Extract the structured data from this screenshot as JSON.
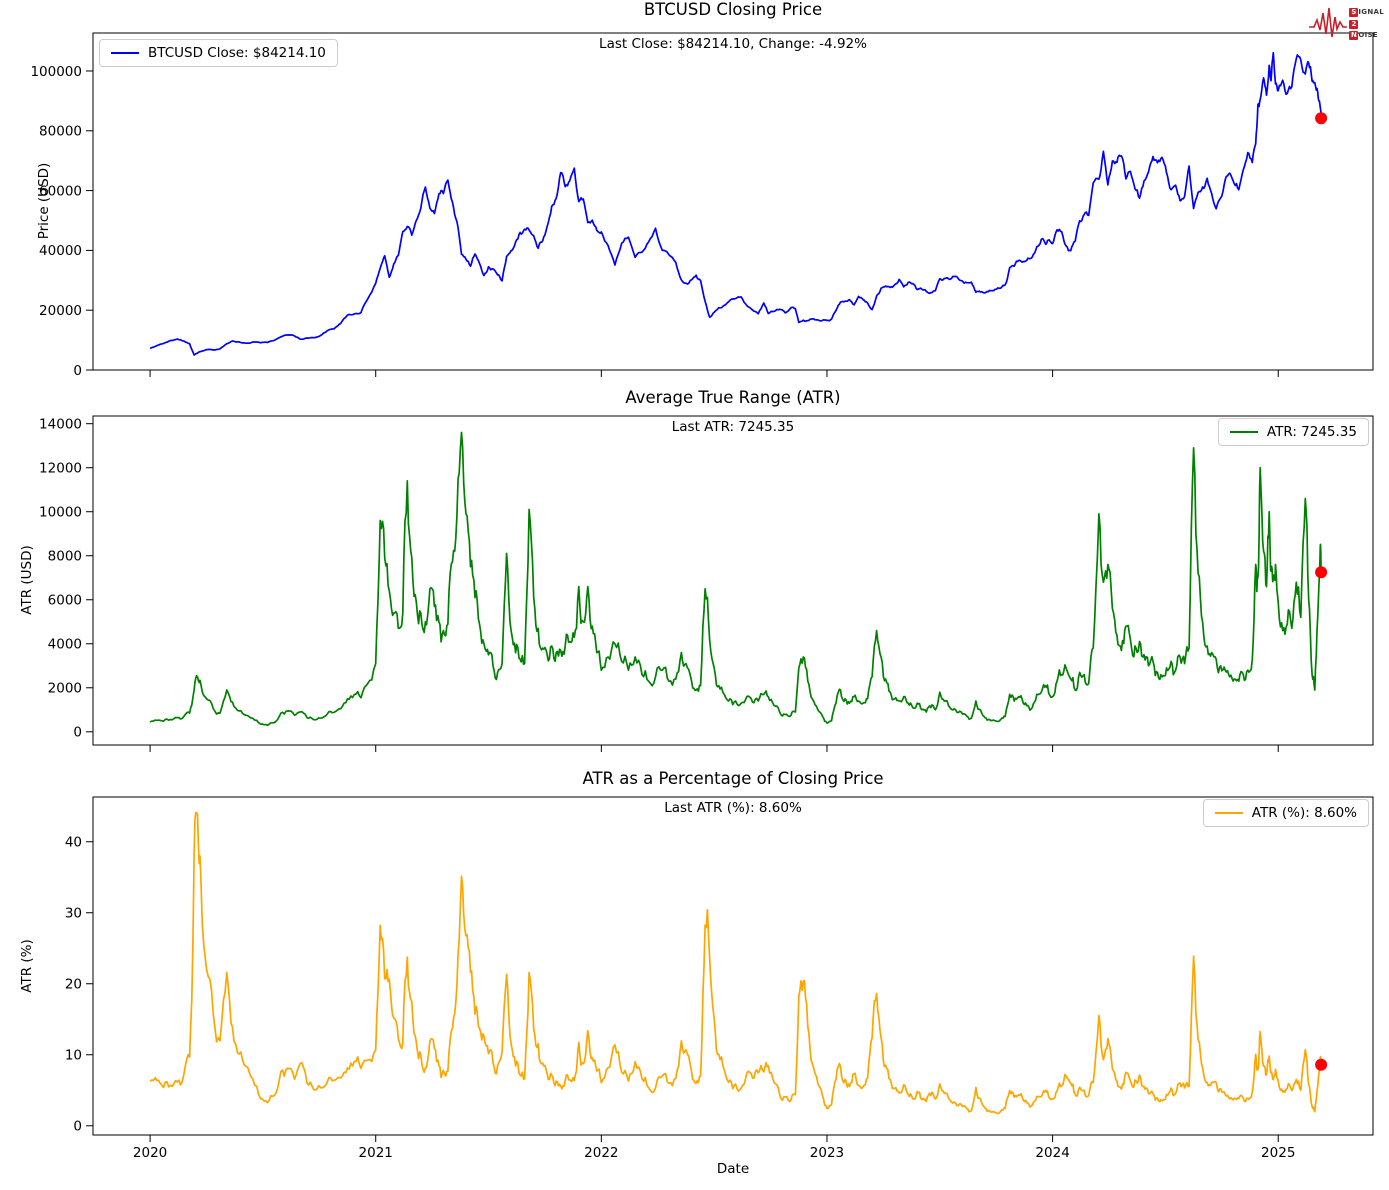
{
  "page": {
    "background": "#ffffff"
  },
  "logo": {
    "s": "S",
    "ignal": "IGNAL",
    "two": "2",
    "n": "N",
    "oise": "OISE",
    "color": "#c8202a"
  },
  "chart_data": {
    "type": "line",
    "xlabel": "Date",
    "xlim": [
      2019.747,
      2025.42
    ],
    "x_ticks_years": [
      2020,
      2021,
      2022,
      2023,
      2024,
      2025
    ],
    "x_tick_labels": [
      "2020",
      "2021",
      "2022",
      "2023",
      "2024",
      "2025"
    ],
    "endpoint_marker_color": "#ff0000",
    "series": [
      {
        "name": "BTCUSD Close",
        "color": "#0000ff",
        "component": "close"
      },
      {
        "name": "ATR",
        "color": "#008000",
        "component": "atr"
      },
      {
        "name": "ATR (%)",
        "color": "#ffa500",
        "component": "derived",
        "derived": "atr / close * 100"
      }
    ],
    "panels": [
      {
        "title": "BTCUSD Closing Price",
        "subtitle": "Last Close: $84214.10, Change: -4.92%",
        "ylabel": "Price (USD)",
        "legend_label": "BTCUSD Close: $84214.10",
        "legend_position": "upper-left",
        "series_index": 0,
        "last_value": 84214.1,
        "last_change_pct": -4.92,
        "ylim": [
          0,
          112700
        ],
        "yticks": [
          0,
          20000,
          40000,
          60000,
          80000,
          100000
        ]
      },
      {
        "title": "Average True Range (ATR)",
        "subtitle": "Last ATR: 7245.35",
        "ylabel": "ATR (USD)",
        "legend_label": "ATR: 7245.35",
        "legend_position": "upper-right",
        "series_index": 1,
        "last_value": 7245.35,
        "ylim": [
          -600,
          14350
        ],
        "yticks": [
          0,
          2000,
          4000,
          6000,
          8000,
          10000,
          12000,
          14000
        ]
      },
      {
        "title": "ATR as a Percentage of Closing Price",
        "subtitle": "Last ATR (%): 8.60%",
        "ylabel": "ATR (%)",
        "legend_label": "ATR (%): 8.60%",
        "legend_position": "upper-right",
        "series_index": 2,
        "last_value": 8.6,
        "ylim": [
          -1.3,
          46.3
        ],
        "yticks": [
          0,
          10,
          20,
          30,
          40
        ]
      }
    ],
    "points_format": [
      "year_fraction",
      "close_usd",
      "atr_usd"
    ],
    "points": [
      [
        2020.0,
        7200,
        450
      ],
      [
        2020.03,
        8150,
        520
      ],
      [
        2020.06,
        8900,
        480
      ],
      [
        2020.09,
        9850,
        560
      ],
      [
        2020.12,
        10350,
        640
      ],
      [
        2020.15,
        9650,
        700
      ],
      [
        2020.175,
        8800,
        850
      ],
      [
        2020.195,
        5000,
        1900
      ],
      [
        2020.21,
        5700,
        2500
      ],
      [
        2020.225,
        6200,
        2150
      ],
      [
        2020.25,
        6800,
        1500
      ],
      [
        2020.28,
        6700,
        1050
      ],
      [
        2020.31,
        7100,
        850
      ],
      [
        2020.34,
        8800,
        1900
      ],
      [
        2020.365,
        9700,
        1350
      ],
      [
        2020.395,
        9400,
        950
      ],
      [
        2020.425,
        8950,
        750
      ],
      [
        2020.455,
        9350,
        620
      ],
      [
        2020.49,
        9100,
        350
      ],
      [
        2020.52,
        9200,
        300
      ],
      [
        2020.55,
        9900,
        420
      ],
      [
        2020.58,
        11100,
        850
      ],
      [
        2020.61,
        11700,
        950
      ],
      [
        2020.64,
        11400,
        750
      ],
      [
        2020.665,
        10300,
        900
      ],
      [
        2020.695,
        10700,
        650
      ],
      [
        2020.725,
        10800,
        550
      ],
      [
        2020.755,
        11500,
        620
      ],
      [
        2020.785,
        13100,
        800
      ],
      [
        2020.815,
        13750,
        880
      ],
      [
        2020.845,
        15600,
        1050
      ],
      [
        2020.875,
        18400,
        1500
      ],
      [
        2020.905,
        18750,
        1700
      ],
      [
        2020.935,
        19200,
        1550
      ],
      [
        2020.965,
        23800,
        2200
      ],
      [
        2021.0,
        29000,
        3100
      ],
      [
        2021.02,
        34000,
        9600
      ],
      [
        2021.04,
        38200,
        7900
      ],
      [
        2021.06,
        31000,
        6400
      ],
      [
        2021.08,
        35500,
        5400
      ],
      [
        2021.1,
        38300,
        4700
      ],
      [
        2021.12,
        46300,
        5400
      ],
      [
        2021.14,
        48000,
        11400
      ],
      [
        2021.16,
        45100,
        7900
      ],
      [
        2021.18,
        50000,
        5900
      ],
      [
        2021.2,
        54100,
        5400
      ],
      [
        2021.22,
        61200,
        5000
      ],
      [
        2021.24,
        54100,
        6500
      ],
      [
        2021.26,
        52300,
        5700
      ],
      [
        2021.28,
        58900,
        5000
      ],
      [
        2021.3,
        59000,
        4600
      ],
      [
        2021.32,
        63500,
        4900
      ],
      [
        2021.34,
        56200,
        7700
      ],
      [
        2021.36,
        49700,
        9800
      ],
      [
        2021.38,
        38700,
        13600
      ],
      [
        2021.4,
        37000,
        9900
      ],
      [
        2021.42,
        34700,
        7500
      ],
      [
        2021.44,
        38800,
        6100
      ],
      [
        2021.46,
        35600,
        4900
      ],
      [
        2021.48,
        31600,
        4000
      ],
      [
        2021.5,
        34500,
        3500
      ],
      [
        2021.52,
        33800,
        3000
      ],
      [
        2021.54,
        31800,
        2700
      ],
      [
        2021.56,
        29800,
        3100
      ],
      [
        2021.58,
        38000,
        8100
      ],
      [
        2021.6,
        39900,
        4600
      ],
      [
        2021.62,
        42800,
        3600
      ],
      [
        2021.64,
        46000,
        3300
      ],
      [
        2021.66,
        47100,
        3100
      ],
      [
        2021.68,
        46800,
        10100
      ],
      [
        2021.7,
        44900,
        6100
      ],
      [
        2021.72,
        40700,
        4700
      ],
      [
        2021.74,
        43200,
        3800
      ],
      [
        2021.76,
        48100,
        3500
      ],
      [
        2021.78,
        54700,
        3900
      ],
      [
        2021.8,
        57400,
        3600
      ],
      [
        2021.82,
        66000,
        3700
      ],
      [
        2021.84,
        61300,
        3900
      ],
      [
        2021.86,
        63300,
        4100
      ],
      [
        2021.88,
        67500,
        4300
      ],
      [
        2021.9,
        56300,
        6600
      ],
      [
        2021.92,
        57200,
        5000
      ],
      [
        2021.94,
        49300,
        6600
      ],
      [
        2021.96,
        50100,
        4800
      ],
      [
        2021.98,
        46700,
        3600
      ],
      [
        2022.0,
        46200,
        2800
      ],
      [
        2022.03,
        41600,
        3400
      ],
      [
        2022.06,
        35100,
        4000
      ],
      [
        2022.09,
        42400,
        3200
      ],
      [
        2022.12,
        44400,
        2800
      ],
      [
        2022.15,
        37700,
        3400
      ],
      [
        2022.18,
        39400,
        2600
      ],
      [
        2022.21,
        42900,
        2300
      ],
      [
        2022.24,
        47400,
        2500
      ],
      [
        2022.27,
        40000,
        2800
      ],
      [
        2022.3,
        38500,
        2300
      ],
      [
        2022.33,
        36000,
        2400
      ],
      [
        2022.355,
        30100,
        3600
      ],
      [
        2022.375,
        29000,
        3100
      ],
      [
        2022.4,
        30200,
        2300
      ],
      [
        2022.42,
        31700,
        1900
      ],
      [
        2022.44,
        29900,
        2100
      ],
      [
        2022.46,
        23000,
        6500
      ],
      [
        2022.48,
        17700,
        4200
      ],
      [
        2022.5,
        19300,
        2900
      ],
      [
        2022.52,
        20800,
        2100
      ],
      [
        2022.545,
        21600,
        1700
      ],
      [
        2022.57,
        23300,
        1500
      ],
      [
        2022.595,
        23900,
        1400
      ],
      [
        2022.62,
        24400,
        1300
      ],
      [
        2022.645,
        21500,
        1600
      ],
      [
        2022.67,
        20100,
        1350
      ],
      [
        2022.695,
        18800,
        1400
      ],
      [
        2022.72,
        22400,
        1700
      ],
      [
        2022.74,
        18900,
        1600
      ],
      [
        2022.765,
        19600,
        1200
      ],
      [
        2022.79,
        20300,
        900
      ],
      [
        2022.815,
        19100,
        780
      ],
      [
        2022.84,
        20800,
        740
      ],
      [
        2022.86,
        20500,
        900
      ],
      [
        2022.875,
        15900,
        2900
      ],
      [
        2022.895,
        16700,
        3400
      ],
      [
        2022.915,
        16500,
        2300
      ],
      [
        2022.935,
        17100,
        1500
      ],
      [
        2022.96,
        16800,
        1000
      ],
      [
        2022.98,
        16600,
        700
      ],
      [
        2023.0,
        16550,
        400
      ],
      [
        2023.02,
        17000,
        500
      ],
      [
        2023.04,
        19900,
        1300
      ],
      [
        2023.06,
        22700,
        1900
      ],
      [
        2023.08,
        23000,
        1500
      ],
      [
        2023.1,
        23500,
        1300
      ],
      [
        2023.12,
        21800,
        1600
      ],
      [
        2023.14,
        24600,
        1400
      ],
      [
        2023.16,
        23500,
        1300
      ],
      [
        2023.18,
        22400,
        1500
      ],
      [
        2023.2,
        20200,
        2500
      ],
      [
        2023.22,
        24700,
        4600
      ],
      [
        2023.24,
        27400,
        3400
      ],
      [
        2023.26,
        28100,
        2400
      ],
      [
        2023.28,
        27600,
        1800
      ],
      [
        2023.3,
        28500,
        1500
      ],
      [
        2023.32,
        30300,
        1400
      ],
      [
        2023.34,
        27800,
        1600
      ],
      [
        2023.36,
        29300,
        1300
      ],
      [
        2023.38,
        28900,
        1100
      ],
      [
        2023.4,
        26900,
        1300
      ],
      [
        2023.42,
        27100,
        1000
      ],
      [
        2023.44,
        26300,
        900
      ],
      [
        2023.46,
        25900,
        1100
      ],
      [
        2023.48,
        26500,
        1000
      ],
      [
        2023.5,
        30500,
        1800
      ],
      [
        2023.52,
        30600,
        1400
      ],
      [
        2023.545,
        30300,
        1100
      ],
      [
        2023.57,
        31300,
        1000
      ],
      [
        2023.595,
        29900,
        900
      ],
      [
        2023.62,
        29200,
        700
      ],
      [
        2023.64,
        29400,
        620
      ],
      [
        2023.66,
        26000,
        1400
      ],
      [
        2023.68,
        26100,
        1000
      ],
      [
        2023.7,
        25800,
        650
      ],
      [
        2023.72,
        26600,
        560
      ],
      [
        2023.745,
        27000,
        500
      ],
      [
        2023.77,
        27400,
        560
      ],
      [
        2023.79,
        28500,
        700
      ],
      [
        2023.81,
        34200,
        1700
      ],
      [
        2023.83,
        34700,
        1400
      ],
      [
        2023.85,
        36700,
        1600
      ],
      [
        2023.87,
        36300,
        1300
      ],
      [
        2023.89,
        37400,
        1200
      ],
      [
        2023.91,
        37800,
        1100
      ],
      [
        2023.93,
        41200,
        1700
      ],
      [
        2023.95,
        43700,
        1800
      ],
      [
        2023.97,
        42000,
        2100
      ],
      [
        2023.985,
        43500,
        1700
      ],
      [
        2024.0,
        42300,
        1600
      ],
      [
        2024.02,
        46900,
        2300
      ],
      [
        2024.04,
        46300,
        2600
      ],
      [
        2024.06,
        41500,
        2900
      ],
      [
        2024.08,
        39900,
        2400
      ],
      [
        2024.1,
        43100,
        1900
      ],
      [
        2024.12,
        49900,
        2700
      ],
      [
        2024.14,
        52000,
        2600
      ],
      [
        2024.16,
        51700,
        2200
      ],
      [
        2024.18,
        62500,
        3800
      ],
      [
        2024.205,
        63800,
        9900
      ],
      [
        2024.225,
        73100,
        6800
      ],
      [
        2024.245,
        61900,
        7600
      ],
      [
        2024.265,
        69900,
        5600
      ],
      [
        2024.285,
        69400,
        4400
      ],
      [
        2024.305,
        71600,
        3700
      ],
      [
        2024.325,
        63900,
        4800
      ],
      [
        2024.345,
        66400,
        4200
      ],
      [
        2024.365,
        60600,
        3900
      ],
      [
        2024.385,
        57500,
        4100
      ],
      [
        2024.405,
        63200,
        3500
      ],
      [
        2024.425,
        66200,
        3000
      ],
      [
        2024.445,
        71400,
        3200
      ],
      [
        2024.465,
        69300,
        2700
      ],
      [
        2024.485,
        71100,
        2500
      ],
      [
        2024.505,
        66000,
        2900
      ],
      [
        2024.525,
        60300,
        3200
      ],
      [
        2024.545,
        61800,
        2800
      ],
      [
        2024.565,
        56600,
        3400
      ],
      [
        2024.585,
        58100,
        3100
      ],
      [
        2024.605,
        68200,
        3800
      ],
      [
        2024.625,
        54000,
        12900
      ],
      [
        2024.645,
        59400,
        7200
      ],
      [
        2024.665,
        61200,
        5000
      ],
      [
        2024.685,
        64100,
        3900
      ],
      [
        2024.705,
        59000,
        3600
      ],
      [
        2024.725,
        53900,
        3300
      ],
      [
        2024.745,
        57600,
        3000
      ],
      [
        2024.765,
        63600,
        2800
      ],
      [
        2024.785,
        65800,
        2500
      ],
      [
        2024.805,
        62300,
        2400
      ],
      [
        2024.825,
        60300,
        2300
      ],
      [
        2024.845,
        67000,
        2600
      ],
      [
        2024.865,
        72700,
        2800
      ],
      [
        2024.885,
        69400,
        3300
      ],
      [
        2024.9,
        75600,
        7600
      ],
      [
        2024.91,
        88700,
        7000
      ],
      [
        2024.92,
        90500,
        12000
      ],
      [
        2024.935,
        97700,
        8200
      ],
      [
        2024.948,
        91900,
        6600
      ],
      [
        2024.96,
        101900,
        10000
      ],
      [
        2024.968,
        96700,
        7300
      ],
      [
        2024.978,
        106100,
        6900
      ],
      [
        2024.988,
        95700,
        7600
      ],
      [
        2025.0,
        93400,
        5900
      ],
      [
        2025.02,
        96900,
        4600
      ],
      [
        2025.04,
        92500,
        4900
      ],
      [
        2025.06,
        94700,
        4700
      ],
      [
        2025.08,
        104100,
        6800
      ],
      [
        2025.1,
        103700,
        5200
      ],
      [
        2025.12,
        99000,
        10600
      ],
      [
        2025.135,
        102700,
        6000
      ],
      [
        2025.15,
        96600,
        2600
      ],
      [
        2025.162,
        96100,
        1900
      ],
      [
        2025.175,
        93000,
        5200
      ],
      [
        2025.185,
        88573,
        7900
      ],
      [
        2025.19,
        84214.1,
        7245.35
      ]
    ]
  }
}
